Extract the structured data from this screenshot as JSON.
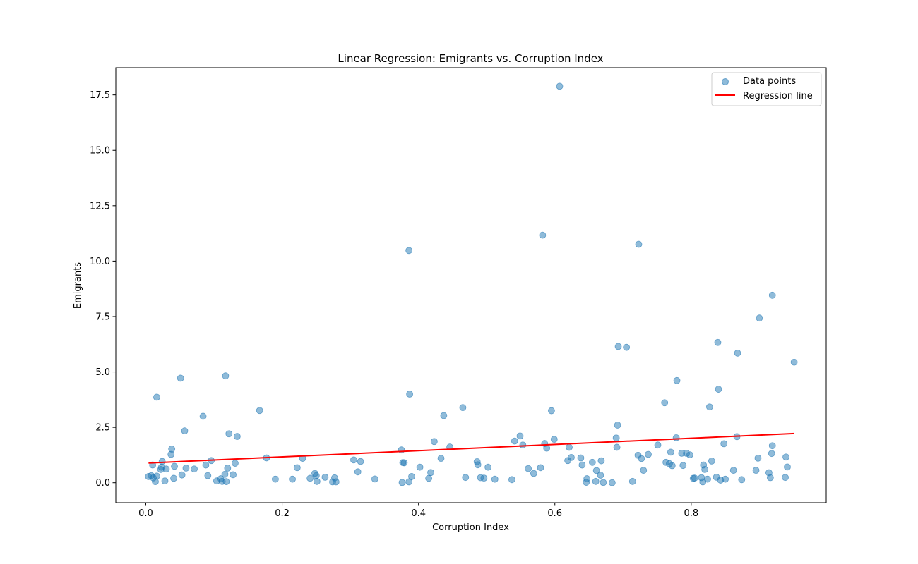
{
  "chart_data": {
    "type": "scatter",
    "title": "Linear Regression: Emigrants vs. Corruption Index",
    "xlabel": "Corruption Index",
    "ylabel": "Emigrants",
    "xlim": [
      -0.044,
      0.998
    ],
    "ylim": [
      -0.9,
      18.73
    ],
    "x_ticks": [
      "0.0",
      "0.2",
      "0.4",
      "0.6",
      "0.8"
    ],
    "x_tick_values": [
      0.0,
      0.2,
      0.4,
      0.6,
      0.8
    ],
    "y_ticks": [
      "0.0",
      "2.5",
      "5.0",
      "7.5",
      "10.0",
      "12.5",
      "15.0",
      "17.5"
    ],
    "y_tick_values": [
      0.0,
      2.5,
      5.0,
      7.5,
      10.0,
      12.5,
      15.0,
      17.5
    ],
    "grid": false,
    "legend_position": "top-right",
    "series": [
      {
        "name": "Data points",
        "kind": "scatter",
        "color": "#1f77b4",
        "alpha": 0.5,
        "points": [
          [
            0.004,
            0.28
          ],
          [
            0.008,
            0.32
          ],
          [
            0.01,
            0.8
          ],
          [
            0.011,
            0.22
          ],
          [
            0.014,
            0.05
          ],
          [
            0.016,
            0.3
          ],
          [
            0.016,
            3.86
          ],
          [
            0.022,
            0.6
          ],
          [
            0.023,
            0.7
          ],
          [
            0.024,
            0.96
          ],
          [
            0.028,
            0.08
          ],
          [
            0.03,
            0.62
          ],
          [
            0.037,
            1.28
          ],
          [
            0.038,
            1.52
          ],
          [
            0.041,
            0.2
          ],
          [
            0.042,
            0.74
          ],
          [
            0.051,
            4.72
          ],
          [
            0.053,
            0.35
          ],
          [
            0.057,
            2.34
          ],
          [
            0.059,
            0.66
          ],
          [
            0.071,
            0.62
          ],
          [
            0.084,
            3.0
          ],
          [
            0.088,
            0.8
          ],
          [
            0.091,
            0.32
          ],
          [
            0.096,
            1.0
          ],
          [
            0.104,
            0.08
          ],
          [
            0.11,
            0.18
          ],
          [
            0.112,
            0.06
          ],
          [
            0.116,
            0.38
          ],
          [
            0.117,
            4.82
          ],
          [
            0.118,
            0.05
          ],
          [
            0.12,
            0.66
          ],
          [
            0.122,
            2.21
          ],
          [
            0.128,
            0.36
          ],
          [
            0.131,
            0.88
          ],
          [
            0.134,
            2.09
          ],
          [
            0.167,
            3.26
          ],
          [
            0.177,
            1.12
          ],
          [
            0.19,
            0.16
          ],
          [
            0.215,
            0.16
          ],
          [
            0.222,
            0.68
          ],
          [
            0.23,
            1.1
          ],
          [
            0.241,
            0.2
          ],
          [
            0.248,
            0.42
          ],
          [
            0.25,
            0.32
          ],
          [
            0.251,
            0.06
          ],
          [
            0.263,
            0.25
          ],
          [
            0.274,
            0.04
          ],
          [
            0.277,
            0.22
          ],
          [
            0.279,
            0.04
          ],
          [
            0.305,
            1.03
          ],
          [
            0.311,
            0.49
          ],
          [
            0.315,
            0.96
          ],
          [
            0.336,
            0.17
          ],
          [
            0.375,
            1.48
          ],
          [
            0.376,
            0.01
          ],
          [
            0.377,
            0.91
          ],
          [
            0.379,
            0.9
          ],
          [
            0.386,
            10.48
          ],
          [
            0.386,
            0.04
          ],
          [
            0.387,
            4.0
          ],
          [
            0.39,
            0.28
          ],
          [
            0.402,
            0.7
          ],
          [
            0.415,
            0.2
          ],
          [
            0.418,
            0.46
          ],
          [
            0.423,
            1.86
          ],
          [
            0.433,
            1.1
          ],
          [
            0.437,
            3.03
          ],
          [
            0.446,
            1.61
          ],
          [
            0.465,
            3.39
          ],
          [
            0.469,
            0.24
          ],
          [
            0.486,
            0.95
          ],
          [
            0.487,
            0.81
          ],
          [
            0.491,
            0.23
          ],
          [
            0.496,
            0.21
          ],
          [
            0.502,
            0.7
          ],
          [
            0.512,
            0.16
          ],
          [
            0.537,
            0.14
          ],
          [
            0.541,
            1.88
          ],
          [
            0.549,
            2.11
          ],
          [
            0.553,
            1.7
          ],
          [
            0.561,
            0.64
          ],
          [
            0.569,
            0.42
          ],
          [
            0.579,
            0.68
          ],
          [
            0.582,
            11.17
          ],
          [
            0.585,
            1.77
          ],
          [
            0.588,
            1.56
          ],
          [
            0.595,
            3.25
          ],
          [
            0.599,
            1.96
          ],
          [
            0.607,
            17.89
          ],
          [
            0.619,
            1.0
          ],
          [
            0.621,
            1.6
          ],
          [
            0.624,
            1.14
          ],
          [
            0.638,
            1.12
          ],
          [
            0.64,
            0.8
          ],
          [
            0.646,
            0.02
          ],
          [
            0.647,
            0.18
          ],
          [
            0.655,
            0.92
          ],
          [
            0.66,
            0.06
          ],
          [
            0.661,
            0.55
          ],
          [
            0.667,
            0.34
          ],
          [
            0.668,
            0.99
          ],
          [
            0.671,
            0.01
          ],
          [
            0.684,
            0.0
          ],
          [
            0.69,
            2.02
          ],
          [
            0.691,
            1.6
          ],
          [
            0.692,
            2.6
          ],
          [
            0.693,
            6.15
          ],
          [
            0.705,
            6.11
          ],
          [
            0.714,
            0.06
          ],
          [
            0.722,
            1.24
          ],
          [
            0.723,
            10.76
          ],
          [
            0.727,
            1.09
          ],
          [
            0.73,
            0.56
          ],
          [
            0.737,
            1.28
          ],
          [
            0.751,
            1.7
          ],
          [
            0.761,
            3.61
          ],
          [
            0.763,
            0.92
          ],
          [
            0.768,
            0.86
          ],
          [
            0.77,
            1.38
          ],
          [
            0.772,
            0.77
          ],
          [
            0.778,
            2.03
          ],
          [
            0.779,
            4.61
          ],
          [
            0.786,
            1.33
          ],
          [
            0.788,
            0.78
          ],
          [
            0.793,
            1.33
          ],
          [
            0.798,
            1.26
          ],
          [
            0.803,
            0.2
          ],
          [
            0.805,
            0.21
          ],
          [
            0.815,
            0.23
          ],
          [
            0.817,
            0.04
          ],
          [
            0.818,
            0.8
          ],
          [
            0.82,
            0.6
          ],
          [
            0.824,
            0.16
          ],
          [
            0.827,
            3.42
          ],
          [
            0.83,
            0.98
          ],
          [
            0.837,
            0.25
          ],
          [
            0.839,
            6.33
          ],
          [
            0.84,
            4.22
          ],
          [
            0.843,
            0.12
          ],
          [
            0.848,
            1.76
          ],
          [
            0.85,
            0.16
          ],
          [
            0.862,
            0.56
          ],
          [
            0.867,
            2.08
          ],
          [
            0.868,
            5.85
          ],
          [
            0.874,
            0.14
          ],
          [
            0.895,
            0.56
          ],
          [
            0.898,
            1.11
          ],
          [
            0.9,
            7.43
          ],
          [
            0.914,
            0.45
          ],
          [
            0.916,
            0.23
          ],
          [
            0.918,
            1.32
          ],
          [
            0.919,
            1.67
          ],
          [
            0.919,
            8.46
          ],
          [
            0.938,
            0.24
          ],
          [
            0.939,
            1.16
          ],
          [
            0.941,
            0.71
          ],
          [
            0.951,
            5.44
          ]
        ]
      },
      {
        "name": "Regression line",
        "kind": "line",
        "color": "#ff0000",
        "x": [
          0.004,
          0.951
        ],
        "y": [
          0.89,
          2.22
        ]
      }
    ]
  }
}
